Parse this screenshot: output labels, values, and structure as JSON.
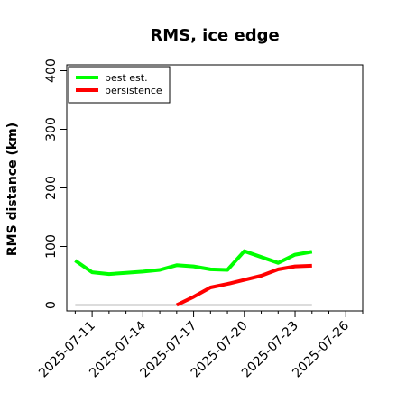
{
  "chart_data": {
    "type": "line",
    "title": "RMS, ice edge",
    "xlabel": "",
    "ylabel": "RMS distance (km)",
    "x_type": "date",
    "xlim": [
      "2025-07-09T12:00",
      "2025-07-27"
    ],
    "ylim": [
      -10,
      410
    ],
    "xticks": [
      "2025-07-11",
      "2025-07-14",
      "2025-07-17",
      "2025-07-20",
      "2025-07-23",
      "2025-07-26"
    ],
    "yticks": [
      0,
      100,
      200,
      300,
      400
    ],
    "grid": false,
    "legend_position": "top-left",
    "colors": {
      "best_est": "#00ff00",
      "persistence": "#ff0000",
      "zero_line": "#777777"
    },
    "series": [
      {
        "name": "best est.",
        "color": "#00ff00",
        "points": [
          {
            "x": "2025-07-10",
            "y": 76
          },
          {
            "x": "2025-07-11",
            "y": 56
          },
          {
            "x": "2025-07-12",
            "y": 53
          },
          {
            "x": "2025-07-13",
            "y": 55
          },
          {
            "x": "2025-07-14",
            "y": 57
          },
          {
            "x": "2025-07-15",
            "y": 60
          },
          {
            "x": "2025-07-16",
            "y": 68
          },
          {
            "x": "2025-07-17",
            "y": 66
          },
          {
            "x": "2025-07-18",
            "y": 61
          },
          {
            "x": "2025-07-19",
            "y": 60
          },
          {
            "x": "2025-07-20",
            "y": 92
          },
          {
            "x": "2025-07-21",
            "y": 82
          },
          {
            "x": "2025-07-22",
            "y": 72
          },
          {
            "x": "2025-07-23",
            "y": 86
          },
          {
            "x": "2025-07-24",
            "y": 91
          }
        ]
      },
      {
        "name": "persistence",
        "color": "#ff0000",
        "points": [
          {
            "x": "2025-07-16",
            "y": 0
          },
          {
            "x": "2025-07-17",
            "y": 14
          },
          {
            "x": "2025-07-18",
            "y": 30
          },
          {
            "x": "2025-07-19",
            "y": 36
          },
          {
            "x": "2025-07-20",
            "y": 43
          },
          {
            "x": "2025-07-21",
            "y": 50
          },
          {
            "x": "2025-07-22",
            "y": 61
          },
          {
            "x": "2025-07-23",
            "y": 66
          },
          {
            "x": "2025-07-24",
            "y": 67
          }
        ]
      }
    ],
    "reference_line": {
      "y": 0,
      "x_from": "2025-07-10",
      "x_to": "2025-07-24"
    }
  }
}
